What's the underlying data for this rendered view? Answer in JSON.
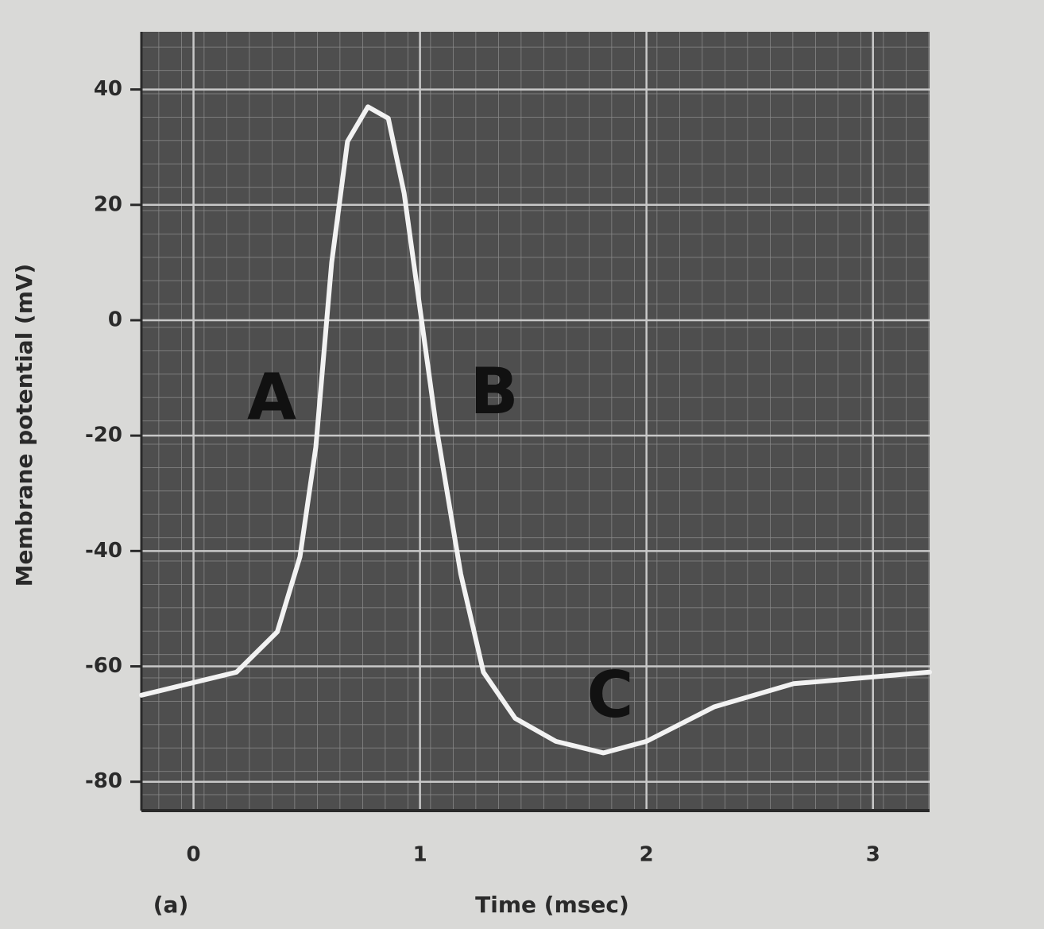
{
  "chart_data": {
    "type": "line",
    "panel_label": "(a)",
    "xlabel": "Time (msec)",
    "ylabel": "Membrane potential (mV)",
    "annotations": [
      "A",
      "B",
      "C"
    ],
    "xlim": [
      -0.23,
      3.25
    ],
    "ylim": [
      -85,
      50
    ],
    "xticks": [
      0,
      1,
      2,
      3
    ],
    "yticks": [
      40,
      20,
      0,
      -20,
      -40,
      -60,
      -80
    ],
    "grid": true,
    "x": [
      -0.23,
      0.19,
      0.37,
      0.47,
      0.54,
      0.61,
      0.68,
      0.77,
      0.86,
      0.93,
      1.0,
      1.07,
      1.18,
      1.28,
      1.42,
      1.6,
      1.81,
      2.0,
      2.3,
      2.65,
      3.25
    ],
    "series": [
      {
        "name": "Membrane potential",
        "color": "#f2f2f2",
        "values": [
          -65,
          -61,
          -54,
          -41,
          -22,
          10,
          31,
          37,
          35,
          22,
          2,
          -18,
          -44,
          -61,
          -69,
          -73,
          -75,
          -73,
          -67,
          -63,
          -61
        ]
      }
    ]
  }
}
